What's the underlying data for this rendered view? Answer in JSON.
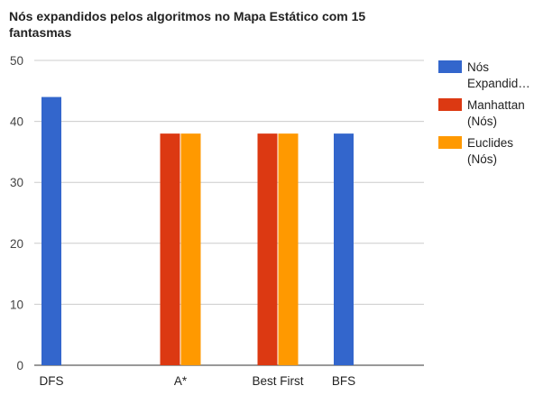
{
  "chart_data": {
    "type": "bar",
    "title": "Nós expandidos pelos algoritmos no Mapa Estático com 15 fantasmas",
    "categories": [
      "DFS",
      "A*",
      "Best First",
      "BFS"
    ],
    "series": [
      {
        "name": "Nós Expandid…",
        "color": "#3366cc",
        "values": [
          44,
          null,
          null,
          38
        ]
      },
      {
        "name": "Manhattan (Nós)",
        "color": "#dc3912",
        "values": [
          null,
          38,
          38,
          null
        ]
      },
      {
        "name": "Euclides (Nós)",
        "color": "#ff9900",
        "values": [
          null,
          38,
          38,
          null
        ]
      }
    ],
    "ylim": [
      0,
      50
    ],
    "yticks": [
      0,
      10,
      20,
      30,
      40,
      50
    ],
    "grid": true,
    "legend": "right"
  }
}
